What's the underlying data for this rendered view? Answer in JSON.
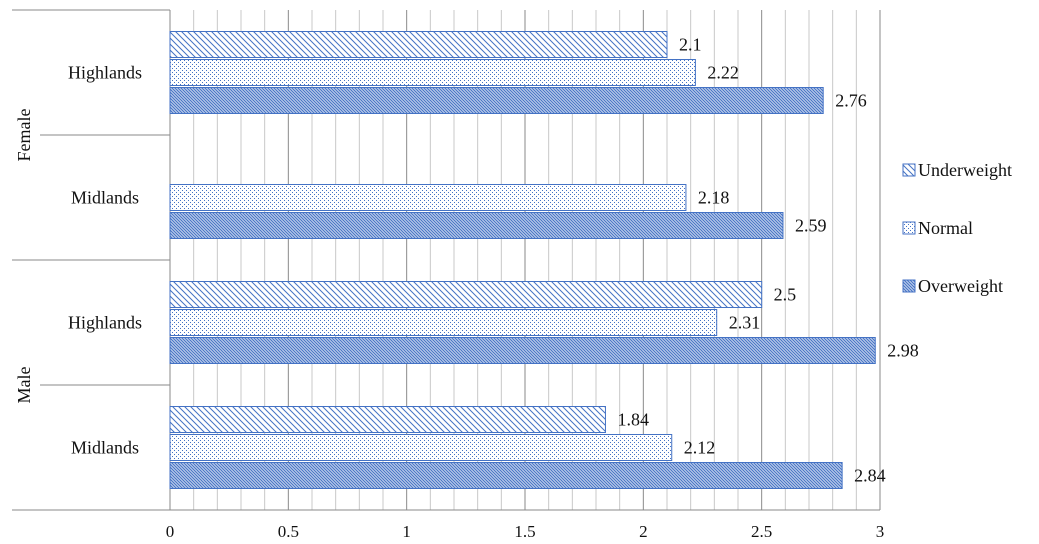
{
  "chart_data": {
    "type": "bar",
    "orientation": "horizontal",
    "title": "",
    "xlabel": "",
    "ylabel": "",
    "xlim": [
      0,
      3
    ],
    "x_ticks": [
      "0",
      "0.5",
      "1",
      "1.5",
      "2",
      "2.5",
      "3"
    ],
    "grid": true,
    "legend_position": "right",
    "groups": [
      {
        "label": "Female",
        "categories": [
          {
            "label": "Highlands",
            "values": [
              {
                "series": "Underweight",
                "value": 2.1,
                "label": "2.1"
              },
              {
                "series": "Normal",
                "value": 2.22,
                "label": "2.22"
              },
              {
                "series": "Overweight",
                "value": 2.76,
                "label": "2.76"
              }
            ]
          },
          {
            "label": "Midlands",
            "values": [
              {
                "series": "Normal",
                "value": 2.18,
                "label": "2.18"
              },
              {
                "series": "Overweight",
                "value": 2.59,
                "label": "2.59"
              }
            ]
          }
        ]
      },
      {
        "label": "Male",
        "categories": [
          {
            "label": "Highlands",
            "values": [
              {
                "series": "Underweight",
                "value": 2.5,
                "label": "2.5"
              },
              {
                "series": "Normal",
                "value": 2.31,
                "label": "2.31"
              },
              {
                "series": "Overweight",
                "value": 2.98,
                "label": "2.98"
              }
            ]
          },
          {
            "label": "Midlands",
            "values": [
              {
                "series": "Underweight",
                "value": 1.84,
                "label": "1.84"
              },
              {
                "series": "Normal",
                "value": 2.12,
                "label": "2.12"
              },
              {
                "series": "Overweight",
                "value": 2.84,
                "label": "2.84"
              }
            ]
          }
        ]
      }
    ],
    "series": [
      {
        "name": "Underweight",
        "pattern": "diagonal-hatch",
        "color": "#4472c4"
      },
      {
        "name": "Normal",
        "pattern": "dotted",
        "color": "#4472c4"
      },
      {
        "name": "Overweight",
        "pattern": "dense-hatch",
        "color": "#4472c4"
      }
    ]
  }
}
